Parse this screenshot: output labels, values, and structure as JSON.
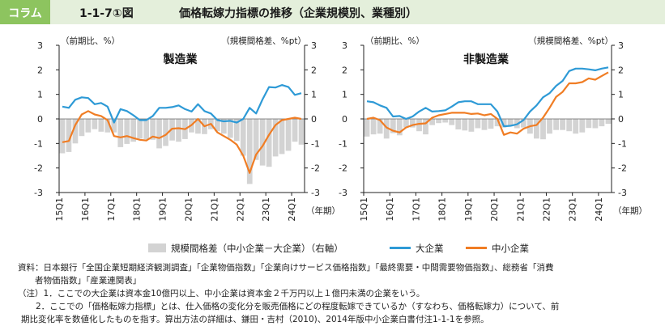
{
  "header": {
    "tag": "コラム",
    "figure_number": "1-1-7①図",
    "title": "価格転嫁力指標の推移（企業規模別、業種別）"
  },
  "legend": {
    "items": [
      {
        "label": "規模間格差（中小企業－大企業）（右軸）",
        "kind": "bar",
        "color": "#d3d3d3"
      },
      {
        "label": "大企業",
        "kind": "line",
        "color": "#2e9ad6"
      },
      {
        "label": "中小企業",
        "kind": "line",
        "color": "#f07d24"
      }
    ]
  },
  "notes": [
    "資料：日本銀行「全国企業短期経済観測調査」「企業物価指数」「企業向けサービス価格指数」「最終需要・中間需要物価指数」、総務省「消費",
    "　　者物価指数」「産業連関表」",
    "（注）1．ここでの大企業は資本金10億円以上、中小企業は資本金２千万円以上１億円未満の企業をいう。",
    "2．ここでの「価格転嫁力指標」とは、仕入価格の変化分を販売価格にどの程度転嫁できているか（すなわち、価格転嫁力）について、前",
    "期比変化率を数値化したものを指す。算出方法の詳細は、鎌田・吉村（2010)、2014年版中小企業白書付注1-1-1を参照。"
  ],
  "chart_data": [
    {
      "type": "line",
      "title": "製造業",
      "left_axis_label": "（前期比、%）",
      "right_axis_label": "（規模間格差、%pt）",
      "x_unit_label": "（年期）",
      "ylim": [
        -3,
        3
      ],
      "y_ticks": [
        "3",
        "2",
        "1",
        "0",
        "-1",
        "-2",
        "-3"
      ],
      "x_tick_labels": [
        "15Q1",
        "16Q1",
        "17Q1",
        "18Q1",
        "19Q1",
        "20Q1",
        "21Q1",
        "22Q1",
        "23Q1",
        "24Q1"
      ],
      "x_tick_index": [
        0,
        4,
        8,
        12,
        16,
        20,
        24,
        28,
        32,
        36
      ],
      "series": [
        {
          "name": "大企業",
          "color": "#2e9ad6",
          "values": [
            0.5,
            0.45,
            0.78,
            0.88,
            0.85,
            0.6,
            0.65,
            0.5,
            -0.15,
            0.4,
            0.32,
            0.15,
            -0.05,
            -0.05,
            0.12,
            0.45,
            0.45,
            0.48,
            0.55,
            0.4,
            0.3,
            0.6,
            0.32,
            0.22,
            -0.05,
            -0.1,
            -0.08,
            -0.15,
            0.0,
            0.45,
            0.22,
            0.8,
            1.3,
            1.28,
            1.38,
            1.3,
            0.98,
            1.05
          ]
        },
        {
          "name": "中小企業",
          "color": "#f07d24",
          "values": [
            -0.95,
            -0.9,
            -0.25,
            0.18,
            0.32,
            0.18,
            0.12,
            -0.05,
            -0.7,
            -0.75,
            -0.7,
            -0.78,
            -0.85,
            -0.88,
            -0.72,
            -0.78,
            -0.65,
            -0.4,
            -0.38,
            -0.42,
            -0.25,
            0.0,
            -0.3,
            -0.2,
            -0.55,
            -0.7,
            -0.85,
            -1.05,
            -1.5,
            -2.2,
            -1.45,
            -1.1,
            -0.65,
            -0.25,
            -0.05,
            0.0,
            0.05,
            0.0
          ]
        },
        {
          "name": "規模間格差（中小企業－大企業）（右軸）",
          "color": "#d3d3d3",
          "kind": "bar",
          "values": [
            -1.4,
            -1.35,
            -1.0,
            -0.7,
            -0.55,
            -0.42,
            -0.52,
            -0.55,
            -0.55,
            -1.15,
            -1.02,
            -0.93,
            -0.8,
            -0.83,
            -0.85,
            -1.2,
            -1.1,
            -0.88,
            -0.93,
            -0.82,
            -0.55,
            -0.6,
            -0.62,
            -0.42,
            -0.5,
            -0.6,
            -0.77,
            -0.9,
            -1.5,
            -2.65,
            -1.67,
            -1.9,
            -1.95,
            -1.53,
            -1.43,
            -1.3,
            -0.93,
            -1.05
          ]
        }
      ]
    },
    {
      "type": "line",
      "title": "非製造業",
      "left_axis_label": "（前期比、%）",
      "right_axis_label": "（規模間格差、%pt）",
      "x_unit_label": "（年期）",
      "ylim": [
        -3,
        3
      ],
      "y_ticks": [
        "3",
        "2",
        "1",
        "0",
        "-1",
        "-2",
        "-3"
      ],
      "x_tick_labels": [
        "15Q1",
        "16Q1",
        "17Q1",
        "18Q1",
        "19Q1",
        "20Q1",
        "21Q1",
        "22Q1",
        "23Q1",
        "24Q1"
      ],
      "x_tick_index": [
        0,
        4,
        8,
        12,
        16,
        20,
        24,
        28,
        32,
        36
      ],
      "series": [
        {
          "name": "大企業",
          "color": "#2e9ad6",
          "values": [
            0.72,
            0.68,
            0.55,
            0.45,
            0.1,
            0.12,
            0.0,
            0.1,
            0.3,
            0.45,
            0.3,
            0.32,
            0.35,
            0.5,
            0.68,
            0.72,
            0.72,
            0.6,
            0.6,
            0.6,
            0.3,
            -0.3,
            -0.28,
            -0.22,
            -0.05,
            0.3,
            0.55,
            0.88,
            1.05,
            1.35,
            1.55,
            1.95,
            2.05,
            2.05,
            2.02,
            1.98,
            2.05,
            2.1
          ]
        },
        {
          "name": "中小企業",
          "color": "#f07d24",
          "values": [
            0.0,
            0.05,
            -0.05,
            -0.35,
            -0.48,
            -0.55,
            -0.35,
            -0.25,
            -0.2,
            -0.18,
            0.05,
            0.15,
            0.2,
            0.25,
            0.25,
            0.25,
            0.2,
            0.22,
            0.15,
            0.2,
            0.0,
            -0.65,
            -0.55,
            -0.6,
            -0.4,
            -0.3,
            -0.25,
            0.05,
            0.45,
            0.9,
            1.1,
            1.45,
            1.45,
            1.5,
            1.65,
            1.6,
            1.75,
            1.9
          ]
        },
        {
          "name": "規模間格差（中小企業－大企業）（右軸）",
          "color": "#d3d3d3",
          "kind": "bar",
          "values": [
            -0.72,
            -0.63,
            -0.6,
            -0.8,
            -0.58,
            -0.67,
            -0.35,
            -0.35,
            -0.5,
            -0.63,
            -0.25,
            -0.17,
            -0.15,
            -0.25,
            -0.43,
            -0.47,
            -0.52,
            -0.38,
            -0.45,
            -0.4,
            -0.3,
            -0.35,
            -0.27,
            -0.38,
            -0.35,
            -0.6,
            -0.8,
            -0.83,
            -0.6,
            -0.45,
            -0.45,
            -0.5,
            -0.6,
            -0.55,
            -0.37,
            -0.38,
            -0.3,
            -0.2
          ]
        }
      ]
    }
  ]
}
